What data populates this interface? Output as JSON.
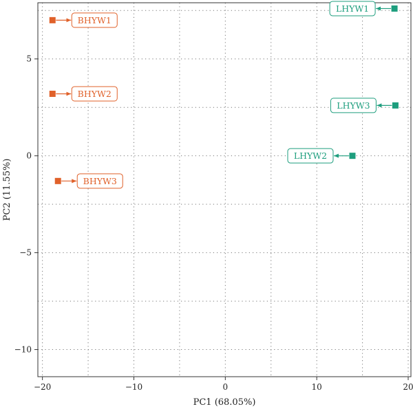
{
  "chart_data": {
    "type": "scatter",
    "xlabel": "PC1 (68.05%)",
    "ylabel": "PC2 (11.55%)",
    "xlim": [
      -20.5,
      20.3
    ],
    "ylim": [
      -11.4,
      7.9
    ],
    "xticks": [
      -20,
      -10,
      0,
      10,
      20
    ],
    "xtick_labels": [
      "−20",
      "−10",
      "0",
      "10",
      "20"
    ],
    "yticks": [
      -10,
      -5,
      0,
      5
    ],
    "ytick_labels": [
      "−10",
      "−5",
      "0",
      "5"
    ],
    "grid": true,
    "legend": "none",
    "colors": {
      "BHYW": "#E0612A",
      "LHYW": "#1E9E7E"
    },
    "points": [
      {
        "label": "BHYW1",
        "group": "BHYW",
        "x": -18.9,
        "y": 7.0,
        "label_side": "right"
      },
      {
        "label": "BHYW2",
        "group": "BHYW",
        "x": -18.9,
        "y": 3.2,
        "label_side": "right"
      },
      {
        "label": "BHYW3",
        "group": "BHYW",
        "x": -18.3,
        "y": -1.3,
        "label_side": "right"
      },
      {
        "label": "LHYW1",
        "group": "LHYW",
        "x": 18.5,
        "y": 7.6,
        "label_side": "left"
      },
      {
        "label": "LHYW3",
        "group": "LHYW",
        "x": 18.6,
        "y": 2.6,
        "label_side": "left"
      },
      {
        "label": "LHYW2",
        "group": "LHYW",
        "x": 13.9,
        "y": 0.0,
        "label_side": "left"
      }
    ]
  }
}
